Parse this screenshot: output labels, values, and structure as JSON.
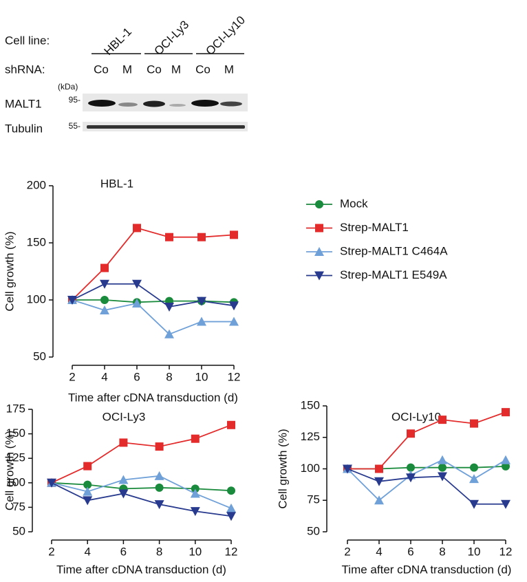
{
  "blot": {
    "cell_line_label": "Cell line:",
    "cell_lines": [
      "HBL-1",
      "OCI-Ly3",
      "OCI-Ly10"
    ],
    "shrna_label": "shRNA:",
    "shrna": [
      "Co",
      "M",
      "Co",
      "M",
      "Co",
      "M"
    ],
    "kda_label": "(kDa)",
    "rows": [
      {
        "name": "MALT1",
        "marker": "95-"
      },
      {
        "name": "Tubulin",
        "marker": "55-"
      }
    ]
  },
  "chart_data": [
    {
      "type": "line",
      "title": "HBL-1",
      "x_label": "Time after cDNA transduction (d)",
      "y_label": "Cell growth (%)",
      "x": [
        2,
        4,
        6,
        8,
        10,
        12
      ],
      "xlim": [
        2,
        12
      ],
      "xticks": [
        2,
        4,
        6,
        8,
        10,
        12
      ],
      "ylim": [
        50,
        200
      ],
      "yticks": [
        50,
        100,
        150,
        200
      ],
      "series": [
        {
          "name": "Mock",
          "color": "#1a8a3c",
          "marker": "circle",
          "values": [
            100,
            100,
            98,
            99,
            99,
            98
          ]
        },
        {
          "name": "Strep-MALT1",
          "color": "#e32b2b",
          "marker": "square",
          "values": [
            100,
            128,
            163,
            155,
            155,
            157
          ]
        },
        {
          "name": "Strep-MALT1 C464A",
          "color": "#6fa0d8",
          "marker": "triangle-up",
          "values": [
            100,
            91,
            97,
            70,
            81,
            81
          ]
        },
        {
          "name": "Strep-MALT1 E549A",
          "color": "#283a8e",
          "marker": "triangle-down",
          "values": [
            100,
            114,
            114,
            94,
            99,
            95
          ]
        }
      ]
    },
    {
      "type": "line",
      "title": "OCI-Ly3",
      "x_label": "Time after cDNA transduction (d)",
      "y_label": "Cell growth (%)",
      "x": [
        2,
        4,
        6,
        8,
        10,
        12
      ],
      "xlim": [
        2,
        12
      ],
      "xticks": [
        2,
        4,
        6,
        8,
        10,
        12
      ],
      "ylim": [
        50,
        175
      ],
      "yticks": [
        50,
        75,
        100,
        125,
        150,
        175
      ],
      "series": [
        {
          "color": "#1a8a3c",
          "marker": "circle",
          "values": [
            100,
            98,
            94,
            95,
            94,
            92
          ]
        },
        {
          "color": "#e32b2b",
          "marker": "square",
          "values": [
            100,
            117,
            141,
            137,
            145,
            159
          ]
        },
        {
          "color": "#6fa0d8",
          "marker": "triangle-up",
          "values": [
            100,
            91,
            103,
            107,
            89,
            74
          ]
        },
        {
          "color": "#283a8e",
          "marker": "triangle-down",
          "values": [
            100,
            82,
            89,
            78,
            71,
            66
          ]
        }
      ]
    },
    {
      "type": "line",
      "title": "OCI-Ly10",
      "x_label": "Time after cDNA transduction (d)",
      "y_label": "Cell growth (%)",
      "x": [
        2,
        4,
        6,
        8,
        10,
        12
      ],
      "xlim": [
        2,
        12
      ],
      "xticks": [
        2,
        4,
        6,
        8,
        10,
        12
      ],
      "ylim": [
        50,
        150
      ],
      "yticks": [
        50,
        75,
        100,
        125,
        150
      ],
      "series": [
        {
          "color": "#1a8a3c",
          "marker": "circle",
          "values": [
            100,
            100,
            101,
            101,
            101,
            102
          ]
        },
        {
          "color": "#e32b2b",
          "marker": "square",
          "values": [
            100,
            100,
            128,
            139,
            136,
            145
          ]
        },
        {
          "color": "#6fa0d8",
          "marker": "triangle-up",
          "values": [
            100,
            75,
            95,
            107,
            92,
            107
          ]
        },
        {
          "color": "#283a8e",
          "marker": "triangle-down",
          "values": [
            100,
            90,
            93,
            94,
            72,
            72
          ]
        }
      ]
    }
  ]
}
